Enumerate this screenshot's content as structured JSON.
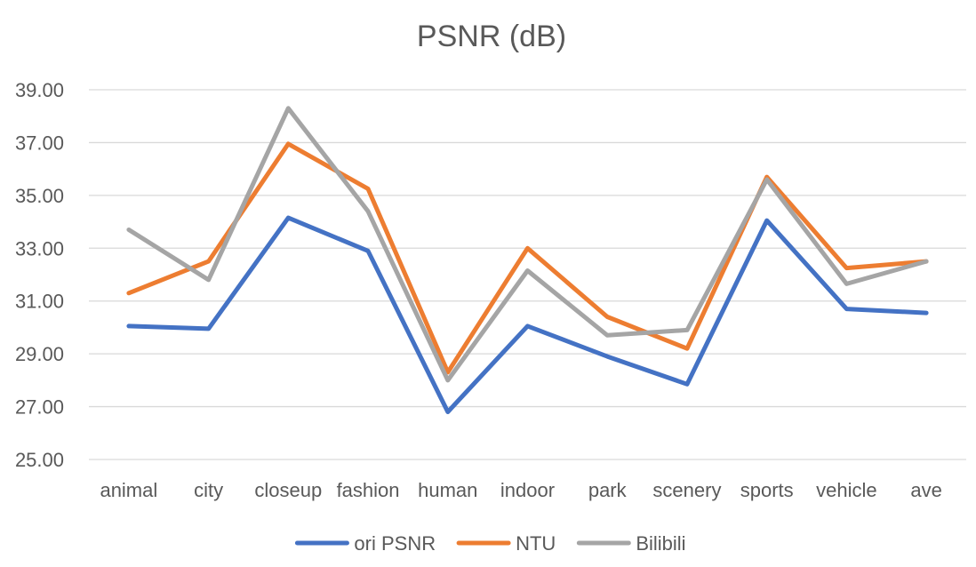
{
  "chart_data": {
    "type": "line",
    "title": "PSNR (dB)",
    "xlabel": "",
    "ylabel": "",
    "categories": [
      "animal",
      "city",
      "closeup",
      "fashion",
      "human",
      "indoor",
      "park",
      "scenery",
      "sports",
      "vehicle",
      "ave"
    ],
    "y_ticks": [
      "25.00",
      "27.00",
      "29.00",
      "31.00",
      "33.00",
      "35.00",
      "37.00",
      "39.00"
    ],
    "ylim": [
      25,
      39
    ],
    "grid": true,
    "legend_position": "bottom",
    "series": [
      {
        "name": "ori PSNR",
        "color": "#4472C4",
        "values": [
          30.05,
          29.95,
          34.15,
          32.9,
          26.8,
          30.05,
          28.9,
          27.85,
          34.05,
          30.7,
          30.55
        ]
      },
      {
        "name": "NTU",
        "color": "#ED7D31",
        "values": [
          31.3,
          32.5,
          36.95,
          35.25,
          28.3,
          33.0,
          30.4,
          29.2,
          35.7,
          32.25,
          32.5
        ]
      },
      {
        "name": "Bilibili",
        "color": "#A5A5A5",
        "values": [
          33.7,
          31.8,
          38.3,
          34.4,
          28.0,
          32.15,
          29.7,
          29.9,
          35.6,
          31.65,
          32.5
        ]
      }
    ]
  }
}
